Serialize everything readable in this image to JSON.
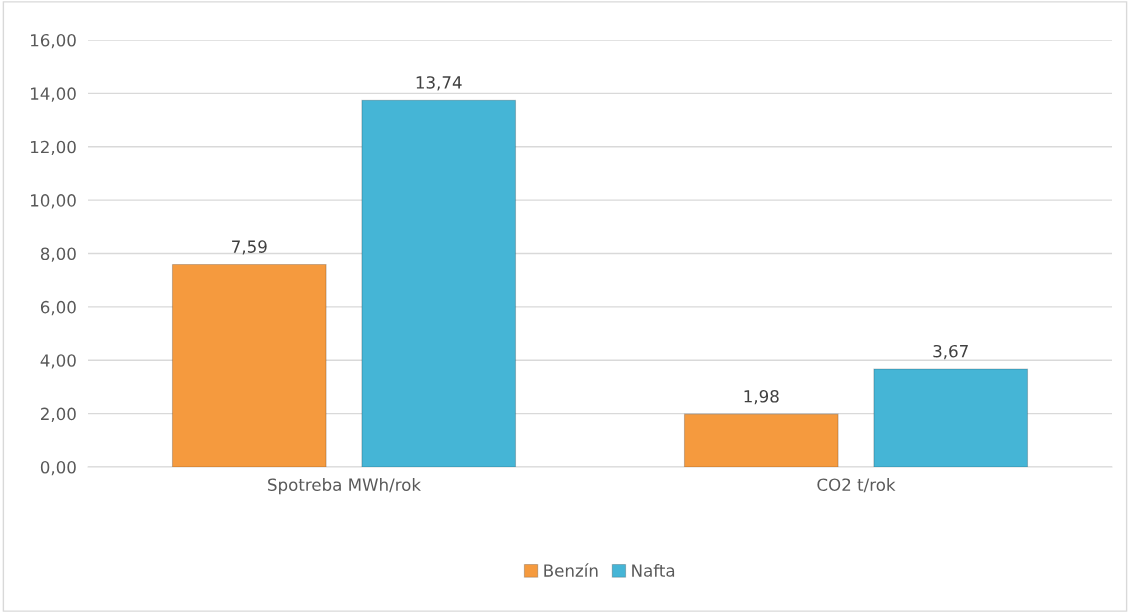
{
  "chart_data": {
    "type": "bar",
    "categories": [
      "Spotreba MWh/rok",
      "CO2 t/rok"
    ],
    "series": [
      {
        "name": "Benzín",
        "color": "#f59a3e",
        "values": [
          7.59,
          1.98
        ],
        "value_labels": [
          "7,59",
          "1,98"
        ]
      },
      {
        "name": "Nafta",
        "color": "#45b5d6",
        "values": [
          13.74,
          3.67
        ],
        "value_labels": [
          "13,74",
          "3,67"
        ]
      }
    ],
    "ylim": [
      0,
      16
    ],
    "yticks": [
      {
        "value": 0,
        "label": "0,00"
      },
      {
        "value": 2,
        "label": "2,00"
      },
      {
        "value": 4,
        "label": "4,00"
      },
      {
        "value": 6,
        "label": "6,00"
      },
      {
        "value": 8,
        "label": "8,00"
      },
      {
        "value": 10,
        "label": "10,00"
      },
      {
        "value": 12,
        "label": "12,00"
      },
      {
        "value": 14,
        "label": "14,00"
      },
      {
        "value": 16,
        "label": "16,00"
      }
    ],
    "grid": "y",
    "legend": "bottom"
  }
}
